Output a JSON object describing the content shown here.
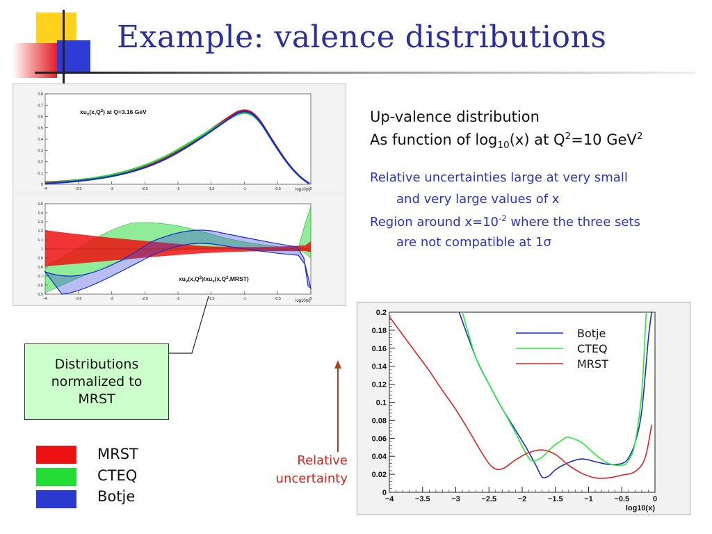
{
  "slide": {
    "title": "Example: valence distributions"
  },
  "top_plot": {
    "label": "xu",
    "label_sub": "v",
    "label_rest": "(x,Q",
    "label_sup": "2",
    "label_tail": ") at Q=3.16 GeV",
    "xaxis_label": "log10(x)",
    "x_ticks": [
      "-4",
      "-3.5",
      "-3",
      "-2.5",
      "-2",
      "-1.5",
      "-1",
      "-0.5",
      "0"
    ],
    "y_ticks": [
      "0",
      "0.1",
      "0.2",
      "0.3",
      "0.4",
      "0.5",
      "0.6",
      "0.7",
      "0.8"
    ]
  },
  "ratio_plot": {
    "label": "xu",
    "label_sub": "v",
    "label_rest": "(x,Q",
    "label_sup": "2",
    "label_mid": ")/xu",
    "label_sub2": "v",
    "label_rest2": "(x,Q",
    "label_sup2": "2",
    "label_tail": ",MRST)",
    "xaxis_label": "log10(x)",
    "x_ticks": [
      "-4",
      "-3.5",
      "-3",
      "-2.5",
      "-2",
      "-1.5",
      "-1",
      "-0.5",
      "0"
    ],
    "y_ticks": [
      "0.5",
      "0.6",
      "0.7",
      "0.8",
      "0.9",
      "1",
      "1.1",
      "1.2",
      "1.3",
      "1.4",
      "1.5"
    ]
  },
  "text": {
    "line1": "Up-valence distribution",
    "line2_a": "As function of log",
    "line2_sub": "10",
    "line2_b": "(x) at Q",
    "line2_sup": "2",
    "line2_c": "=10 GeV",
    "line2_sup2": "2",
    "bullet1_a": "Relative uncertainties large at very small",
    "bullet1_b": "and very large values of x",
    "bullet2_a": "Region around x=10",
    "bullet2_sup": "-2",
    "bullet2_b": " where the three sets",
    "bullet2_c": "are not compatible at 1",
    "bullet2_sigma": "σ"
  },
  "callout": {
    "line1": "Distributions",
    "line2": "normalized to",
    "line3": "MRST"
  },
  "legend": {
    "items": [
      {
        "label": "MRST",
        "color": "#ee1111"
      },
      {
        "label": "CTEQ",
        "color": "#22dd33"
      },
      {
        "label": "Botje",
        "color": "#2a3ad0"
      }
    ]
  },
  "relative_label": {
    "line1": "Relative",
    "line2": "uncertainty"
  },
  "chart_data": {
    "type": "line",
    "xlabel": "log10(x)",
    "ylabel": "",
    "xlim": [
      -4,
      0
    ],
    "ylim": [
      0,
      0.2
    ],
    "x_ticks": [
      "−4",
      "−3.5",
      "−3",
      "−2.5",
      "−2",
      "−1.5",
      "−1",
      "−0.5",
      "0"
    ],
    "y_ticks": [
      "0",
      "0.02",
      "0.04",
      "0.06",
      "0.08",
      "0.1",
      "0.12",
      "0.14",
      "0.16",
      "0.18",
      "0.2"
    ],
    "legend_position": "top-right",
    "series": [
      {
        "name": "Botje",
        "color": "#1a2ad0",
        "x": [
          -2.95,
          -2.7,
          -2.5,
          -2.3,
          -2.1,
          -1.95,
          -1.8,
          -1.7,
          -1.6,
          -1.5,
          -1.3,
          -1.1,
          -0.9,
          -0.7,
          -0.5,
          -0.4,
          -0.3,
          -0.2,
          -0.1,
          -0.05
        ],
        "y": [
          0.2,
          0.15,
          0.12,
          0.093,
          0.069,
          0.051,
          0.031,
          0.017,
          0.018,
          0.025,
          0.033,
          0.037,
          0.034,
          0.031,
          0.032,
          0.038,
          0.055,
          0.09,
          0.17,
          0.2
        ]
      },
      {
        "name": "CTEQ",
        "color": "#22ee33",
        "x": [
          -2.9,
          -2.7,
          -2.5,
          -2.3,
          -2.1,
          -1.95,
          -1.85,
          -1.7,
          -1.55,
          -1.4,
          -1.3,
          -1.1,
          -0.9,
          -0.7,
          -0.5,
          -0.4,
          -0.3,
          -0.2,
          -0.13,
          -0.1
        ],
        "y": [
          0.2,
          0.15,
          0.12,
          0.093,
          0.066,
          0.044,
          0.035,
          0.039,
          0.05,
          0.058,
          0.061,
          0.055,
          0.042,
          0.032,
          0.03,
          0.035,
          0.055,
          0.11,
          0.2,
          0.2
        ]
      },
      {
        "name": "MRST",
        "color": "#e22222",
        "x": [
          -4,
          -3.8,
          -3.6,
          -3.4,
          -3.2,
          -3.0,
          -2.8,
          -2.6,
          -2.45,
          -2.3,
          -2.1,
          -1.9,
          -1.7,
          -1.5,
          -1.3,
          -1.1,
          -0.9,
          -0.7,
          -0.5,
          -0.3,
          -0.15,
          -0.05
        ],
        "y": [
          0.195,
          0.175,
          0.155,
          0.135,
          0.113,
          0.092,
          0.068,
          0.043,
          0.028,
          0.026,
          0.036,
          0.044,
          0.047,
          0.042,
          0.03,
          0.021,
          0.016,
          0.016,
          0.019,
          0.023,
          0.038,
          0.075
        ]
      }
    ]
  }
}
